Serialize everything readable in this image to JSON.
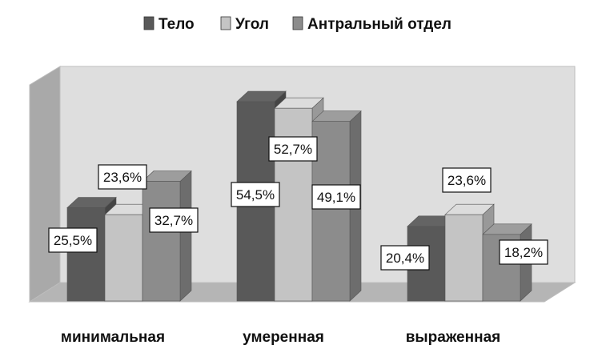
{
  "chart_data": {
    "type": "bar",
    "categories": [
      "минимальная",
      "умеренная",
      "выраженная"
    ],
    "series": [
      {
        "name": "Тело",
        "values": [
          25.5,
          54.5,
          20.4
        ],
        "labels": [
          "25,5%",
          "54,5%",
          "20,4%"
        ],
        "color": "#595959"
      },
      {
        "name": "Угол",
        "values": [
          23.6,
          52.7,
          23.6
        ],
        "labels": [
          "23,6%",
          "52,7%",
          "23,6%"
        ],
        "color": "#c4c4c4"
      },
      {
        "name": "Антральный отдел",
        "values": [
          32.7,
          49.1,
          18.2
        ],
        "labels": [
          "32,7%",
          "49,1%",
          "18,2%"
        ],
        "color": "#8c8c8c"
      }
    ],
    "ylim": [
      0,
      60
    ],
    "grid": false,
    "legend_position": "top",
    "style": "3d-clustered-column"
  }
}
